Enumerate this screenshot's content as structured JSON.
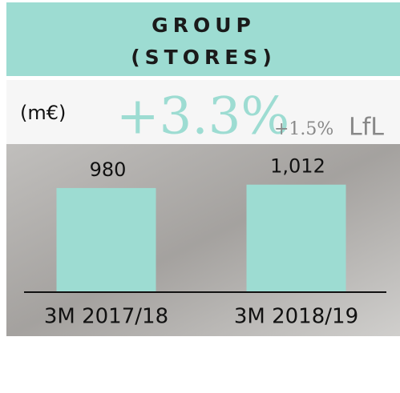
{
  "chart_data": {
    "type": "bar",
    "title": "GROUP",
    "subtitle": "(STORES)",
    "unit": "(m€)",
    "growth": "+3.3%",
    "lfl_growth": "+1.5%",
    "lfl_label": "LfL",
    "categories": [
      "3M 2017/18",
      "3M 2018/19"
    ],
    "values": [
      980,
      1012
    ],
    "value_labels": [
      "980",
      "1,012"
    ],
    "color": "#9ddcd2",
    "ylim": [
      0,
      1100
    ]
  }
}
